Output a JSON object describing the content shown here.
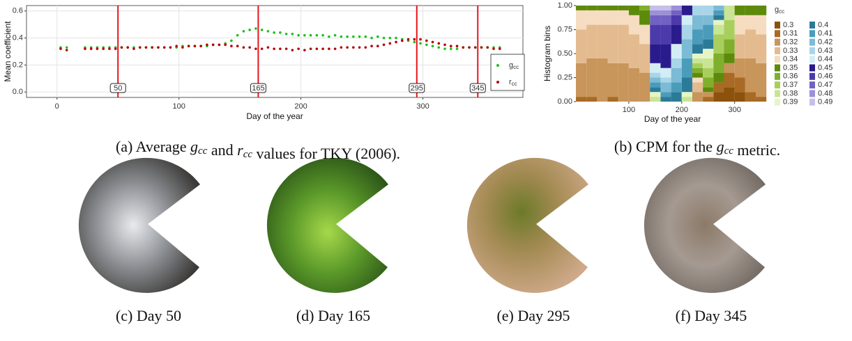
{
  "chart_data": [
    {
      "type": "scatter",
      "x_label": "Day of the year",
      "y_label": "Mean coefficient",
      "x": [
        3,
        8,
        13,
        18,
        23,
        28,
        33,
        38,
        43,
        48,
        53,
        58,
        63,
        68,
        73,
        78,
        83,
        88,
        93,
        98,
        103,
        108,
        113,
        118,
        123,
        128,
        133,
        138,
        143,
        148,
        153,
        158,
        163,
        168,
        173,
        178,
        183,
        188,
        193,
        198,
        203,
        208,
        213,
        218,
        223,
        228,
        233,
        238,
        243,
        248,
        253,
        258,
        263,
        268,
        273,
        278,
        283,
        288,
        293,
        298,
        303,
        308,
        313,
        318,
        323,
        328,
        333,
        338,
        343,
        348,
        353,
        358,
        363
      ],
      "series": [
        {
          "name": "g",
          "subscript": "cc",
          "color": "#1fbf1f",
          "values": [
            0.33,
            0.33,
            null,
            null,
            0.33,
            0.33,
            0.33,
            0.33,
            0.33,
            0.33,
            0.33,
            0.33,
            0.33,
            0.33,
            0.33,
            0.33,
            0.33,
            0.33,
            0.33,
            0.33,
            0.34,
            0.34,
            0.34,
            0.34,
            0.34,
            0.35,
            0.35,
            0.36,
            0.38,
            0.42,
            0.45,
            0.46,
            0.47,
            0.46,
            0.45,
            0.44,
            0.44,
            0.43,
            0.43,
            0.42,
            0.42,
            0.42,
            0.42,
            0.42,
            0.41,
            0.42,
            0.41,
            0.41,
            0.41,
            0.41,
            0.41,
            0.4,
            0.41,
            0.4,
            0.4,
            0.4,
            0.39,
            0.38,
            0.37,
            0.36,
            0.35,
            0.34,
            0.33,
            0.32,
            0.32,
            0.32,
            0.33,
            0.33,
            0.33,
            0.33,
            0.33,
            0.33,
            0.33
          ]
        },
        {
          "name": "r",
          "subscript": "cc",
          "color": "#b30000",
          "values": [
            0.32,
            0.31,
            null,
            null,
            0.32,
            0.32,
            0.32,
            0.32,
            0.32,
            0.32,
            0.33,
            0.33,
            0.32,
            0.33,
            0.33,
            0.33,
            0.33,
            0.33,
            0.33,
            0.34,
            0.33,
            0.34,
            0.34,
            0.34,
            0.35,
            0.35,
            0.35,
            0.35,
            0.34,
            0.34,
            0.33,
            0.33,
            0.32,
            0.32,
            0.33,
            0.32,
            0.32,
            0.32,
            0.31,
            0.32,
            0.31,
            0.32,
            0.32,
            0.32,
            0.32,
            0.32,
            0.33,
            0.33,
            0.33,
            0.33,
            0.33,
            0.34,
            0.34,
            0.35,
            0.36,
            0.37,
            0.38,
            0.39,
            0.39,
            0.39,
            0.38,
            0.37,
            0.36,
            0.35,
            0.34,
            0.34,
            0.33,
            0.33,
            0.33,
            0.33,
            0.33,
            0.32,
            0.32
          ]
        }
      ],
      "xlim": [
        -25,
        382
      ],
      "ylim": [
        -0.04,
        0.64
      ],
      "xticks": [
        0,
        100,
        200,
        300
      ],
      "yticks": [
        {
          "value": 0,
          "label": "0.0"
        },
        0.2,
        0.4,
        0.6
      ],
      "grid": true,
      "legend": "bottom-right",
      "markers": [
        50,
        165,
        295,
        345
      ],
      "marker_color": "#e8141c"
    },
    {
      "type": "stacked_bar",
      "x_label": "Day of the year",
      "y_label": "Histogram bins",
      "legend_title": "g",
      "legend_title_subscript": "cc",
      "x": [
        10,
        30,
        50,
        70,
        90,
        110,
        130,
        150,
        170,
        190,
        210,
        230,
        250,
        270,
        290,
        310,
        330,
        350
      ],
      "series": [
        {
          "name": "0.3",
          "color": "#8c510a",
          "values": [
            0,
            0,
            0,
            0,
            0,
            0,
            0,
            0,
            0,
            0,
            0,
            0,
            0,
            0.1,
            0.15,
            0.1,
            0,
            0
          ]
        },
        {
          "name": "0.31",
          "color": "#a86a24",
          "values": [
            0.05,
            0.05,
            0,
            0.05,
            0,
            0,
            0,
            0,
            0,
            0,
            0,
            0,
            0.05,
            0.1,
            0.15,
            0.15,
            0.1,
            0.05
          ]
        },
        {
          "name": "0.32",
          "color": "#c8955a",
          "values": [
            0.35,
            0.4,
            0.45,
            0.35,
            0.4,
            0.35,
            0.3,
            0,
            0,
            0,
            0,
            0.1,
            0.05,
            0,
            0.1,
            0.2,
            0.35,
            0.35
          ]
        },
        {
          "name": "0.33",
          "color": "#e3bb8f",
          "values": [
            0.35,
            0.35,
            0.35,
            0.4,
            0.4,
            0.35,
            0.3,
            0,
            0,
            0,
            0,
            0.1,
            0,
            0,
            0,
            0.25,
            0.3,
            0.3
          ]
        },
        {
          "name": "0.34",
          "color": "#f6dcc0",
          "values": [
            0.2,
            0.15,
            0.15,
            0.15,
            0.15,
            0.2,
            0.2,
            0,
            0,
            0,
            0,
            0.05,
            0,
            0,
            0,
            0.2,
            0.15,
            0.2
          ]
        },
        {
          "name": "0.35",
          "color": "#5e8a0c",
          "values": [
            0.05,
            0.05,
            0.05,
            0.05,
            0.05,
            0.1,
            0.15,
            0,
            0,
            0,
            0,
            0.05,
            0.05,
            0.1,
            0.1,
            0.1,
            0.1,
            0.1
          ]
        },
        {
          "name": "0.36",
          "color": "#7faf2c",
          "values": [
            0,
            0,
            0,
            0,
            0,
            0,
            0.05,
            0,
            0,
            0,
            0,
            0.05,
            0.1,
            0.2,
            0.15,
            0,
            0,
            0
          ]
        },
        {
          "name": "0.37",
          "color": "#a8cf5e",
          "values": [
            0,
            0,
            0,
            0,
            0,
            0,
            0,
            0,
            0,
            0,
            0,
            0.05,
            0.1,
            0.2,
            0.2,
            0,
            0,
            0
          ]
        },
        {
          "name": "0.38",
          "color": "#c9e594",
          "values": [
            0,
            0,
            0,
            0,
            0,
            0,
            0,
            0.05,
            0,
            0,
            0.05,
            0.05,
            0.1,
            0.1,
            0.15,
            0,
            0,
            0
          ]
        },
        {
          "name": "0.39",
          "color": "#e6f5c6",
          "values": [
            0,
            0,
            0,
            0,
            0,
            0,
            0,
            0.05,
            0,
            0,
            0.05,
            0.05,
            0.1,
            0.05,
            0,
            0,
            0,
            0
          ]
        },
        {
          "name": "0.4",
          "color": "#2b7b98",
          "values": [
            0,
            0,
            0,
            0,
            0,
            0,
            0,
            0.05,
            0.05,
            0.1,
            0.15,
            0.1,
            0.1,
            0.05,
            0,
            0,
            0,
            0
          ]
        },
        {
          "name": "0.41",
          "color": "#4b9cbb",
          "values": [
            0,
            0,
            0,
            0,
            0,
            0,
            0,
            0.05,
            0.05,
            0.1,
            0.2,
            0.15,
            0.15,
            0.05,
            0,
            0,
            0,
            0
          ]
        },
        {
          "name": "0.42",
          "color": "#7cbbd5",
          "values": [
            0,
            0,
            0,
            0,
            0,
            0,
            0,
            0.05,
            0.1,
            0.15,
            0.2,
            0.15,
            0.1,
            0.05,
            0,
            0,
            0,
            0
          ]
        },
        {
          "name": "0.43",
          "color": "#a8d5e8",
          "values": [
            0,
            0,
            0,
            0,
            0,
            0,
            0,
            0.05,
            0.05,
            0.1,
            0.15,
            0.1,
            0.1,
            0,
            0,
            0,
            0,
            0
          ]
        },
        {
          "name": "0.44",
          "color": "#d3edf6",
          "values": [
            0,
            0,
            0,
            0,
            0,
            0,
            0,
            0.1,
            0.1,
            0.15,
            0.1,
            0,
            0,
            0,
            0,
            0,
            0,
            0
          ]
        },
        {
          "name": "0.45",
          "color": "#2a1b8c",
          "values": [
            0,
            0,
            0,
            0,
            0,
            0,
            0,
            0.2,
            0.25,
            0.2,
            0.1,
            0,
            0,
            0,
            0,
            0,
            0,
            0
          ]
        },
        {
          "name": "0.46",
          "color": "#4c3aab",
          "values": [
            0,
            0,
            0,
            0,
            0,
            0,
            0,
            0.2,
            0.2,
            0.1,
            0,
            0,
            0,
            0,
            0,
            0,
            0,
            0
          ]
        },
        {
          "name": "0.47",
          "color": "#7261c3",
          "values": [
            0,
            0,
            0,
            0,
            0,
            0,
            0,
            0.1,
            0.1,
            0.05,
            0,
            0,
            0,
            0,
            0,
            0,
            0,
            0
          ]
        },
        {
          "name": "0.48",
          "color": "#9b90d8",
          "values": [
            0,
            0,
            0,
            0,
            0,
            0,
            0,
            0.05,
            0.05,
            0.05,
            0,
            0,
            0,
            0,
            0,
            0,
            0,
            0
          ]
        },
        {
          "name": "0.49",
          "color": "#c5bfea",
          "values": [
            0,
            0,
            0,
            0,
            0,
            0,
            0,
            0.05,
            0.05,
            0,
            0,
            0,
            0,
            0,
            0,
            0,
            0,
            0
          ]
        }
      ],
      "xlim": [
        0,
        365
      ],
      "ylim": [
        0,
        1
      ],
      "xticks": [
        100,
        200,
        300
      ],
      "yticks": [
        {
          "value": 0,
          "label": "0.00"
        },
        {
          "value": 0.25,
          "label": "0.25"
        },
        {
          "value": 0.5,
          "label": "0.50"
        },
        {
          "value": 0.75,
          "label": "0.75"
        },
        {
          "value": 1,
          "label": "1.00"
        }
      ],
      "legend": "right"
    }
  ],
  "captions": [
    [
      {
        "text": "(a) Average "
      },
      {
        "math": "g",
        "sub": "cc"
      },
      {
        "text": " and "
      },
      {
        "math": "r",
        "sub": "cc"
      },
      {
        "text": " values for TKY (2006)."
      }
    ],
    [
      {
        "text": "(b) CPM for the "
      },
      {
        "math": "g",
        "sub": "cc"
      },
      {
        "text": " metric."
      }
    ]
  ],
  "photos": [
    {
      "caption": "(c) Day 50"
    },
    {
      "caption": "(d) Day 165"
    },
    {
      "caption": "(e) Day 295"
    },
    {
      "caption": "(f) Day 345"
    }
  ]
}
